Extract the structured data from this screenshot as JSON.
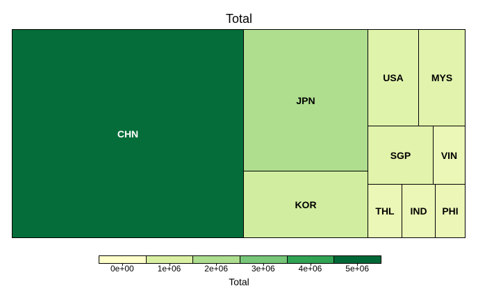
{
  "chart_data": {
    "type": "treemap",
    "title": "Total",
    "tiles": [
      {
        "label": "CHN",
        "value": 5400000
      },
      {
        "label": "JPN",
        "value": 1850000
      },
      {
        "label": "KOR",
        "value": 920000
      },
      {
        "label": "USA",
        "value": 470000
      },
      {
        "label": "MYS",
        "value": 450000
      },
      {
        "label": "SGP",
        "value": 425000
      },
      {
        "label": "VIN",
        "value": 155000
      },
      {
        "label": "THL",
        "value": 140000
      },
      {
        "label": "IND",
        "value": 140000
      },
      {
        "label": "PHI",
        "value": 110000
      }
    ],
    "legend": {
      "title": "Total",
      "position": "bottom",
      "ticks": [
        "0e+00",
        "1e+06",
        "2e+06",
        "3e+06",
        "4e+06",
        "5e+06"
      ],
      "colors": [
        "#FFFFCC",
        "#D9F0A3",
        "#ADDD8E",
        "#78C679",
        "#31A354",
        "#006837"
      ],
      "min": -500000,
      "max": 5500000
    }
  }
}
